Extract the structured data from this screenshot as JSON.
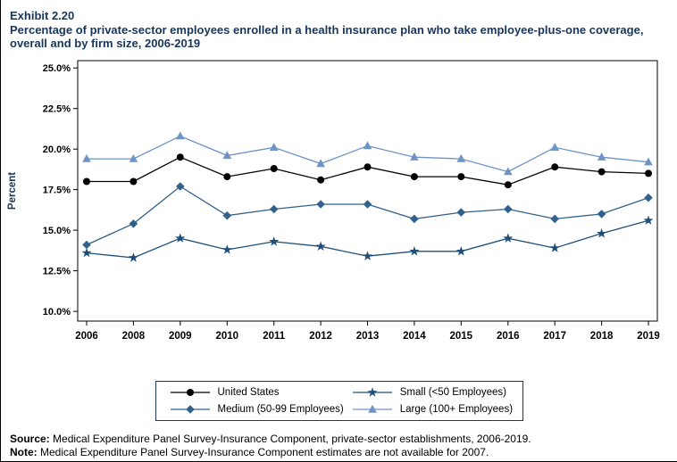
{
  "header": {
    "exhibit": "Exhibit 2.20",
    "title": "Percentage of private-sector employees enrolled in a health insurance plan who take employee-plus-one coverage, overall and by firm size, 2006-2019"
  },
  "chart_data": {
    "type": "line",
    "title": "Percentage of private-sector employees enrolled in a health insurance plan who take employee-plus-one coverage, overall and by firm size, 2006-2019",
    "categories": [
      "2006",
      "2008",
      "2009",
      "2010",
      "2011",
      "2012",
      "2013",
      "2014",
      "2015",
      "2016",
      "2017",
      "2018",
      "2019"
    ],
    "xlabel": "",
    "ylabel": "Percent",
    "ylim": [
      10.0,
      25.0
    ],
    "ytick_step": 2.5,
    "ytick_labels": [
      "10.0%",
      "12.5%",
      "15.0%",
      "17.5%",
      "20.0%",
      "22.5%",
      "25.0%"
    ],
    "grid": false,
    "legend_position": "bottom",
    "series": [
      {
        "name": "United States",
        "marker": "circle",
        "color": "#000000",
        "values": [
          18.0,
          18.0,
          19.5,
          18.3,
          18.8,
          18.1,
          18.9,
          18.3,
          18.3,
          17.8,
          18.9,
          18.6,
          18.5
        ]
      },
      {
        "name": "Small (<50 Employees)",
        "marker": "star",
        "color": "#1f4e79",
        "values": [
          13.6,
          13.3,
          14.5,
          13.8,
          14.3,
          14.0,
          13.4,
          13.7,
          13.7,
          14.5,
          13.9,
          14.8,
          15.6
        ]
      },
      {
        "name": "Medium (50-99 Employees)",
        "marker": "diamond",
        "color": "#31618c",
        "values": [
          14.1,
          15.4,
          17.7,
          15.9,
          16.3,
          16.6,
          16.6,
          15.7,
          16.1,
          16.3,
          15.7,
          16.0,
          17.0
        ]
      },
      {
        "name": "Large (100+ Employees)",
        "marker": "triangle",
        "color": "#6d94c4",
        "values": [
          19.4,
          19.4,
          20.8,
          19.6,
          20.1,
          19.1,
          20.2,
          19.5,
          19.4,
          18.6,
          20.1,
          19.5,
          19.2
        ]
      }
    ]
  },
  "footer": {
    "source_label": "Source:",
    "source_text": " Medical Expenditure Panel Survey-Insurance Component, private-sector establishments, 2006-2019.",
    "note_label": "Note:",
    "note_text": " Medical Expenditure Panel Survey-Insurance Component estimates are not available for 2007."
  },
  "colors": {
    "title_text": "#16365c",
    "axis": "#000000",
    "legend_border": "#1c3a5e"
  }
}
